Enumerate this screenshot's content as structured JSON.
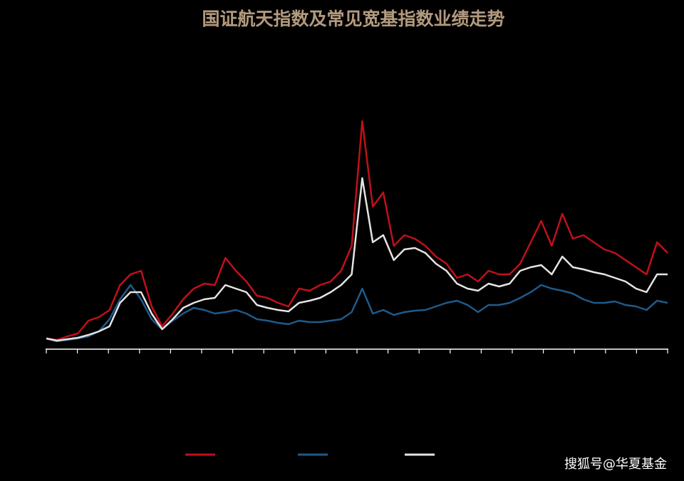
{
  "chart_data": {
    "type": "line",
    "title": "国证航天指数及常见宽基指数业绩走势",
    "watermark": "搜狐号@华夏基金",
    "ylim": [
      0.1,
      3.55
    ],
    "series": [
      {
        "color": "#c0101a",
        "values": [
          0.25,
          0.23,
          0.28,
          0.32,
          0.5,
          0.55,
          0.65,
          1.0,
          1.15,
          1.2,
          0.7,
          0.42,
          0.6,
          0.8,
          0.95,
          1.02,
          1.0,
          1.38,
          1.2,
          1.05,
          0.85,
          0.82,
          0.75,
          0.7,
          0.95,
          0.92,
          1.0,
          1.05,
          1.2,
          1.55,
          3.3,
          2.1,
          2.3,
          1.55,
          1.7,
          1.65,
          1.55,
          1.4,
          1.3,
          1.1,
          1.15,
          1.05,
          1.2,
          1.15,
          1.15,
          1.3,
          1.6,
          1.9,
          1.55,
          2.0,
          1.65,
          1.7,
          1.6,
          1.5,
          1.45,
          1.35,
          1.25,
          1.15,
          1.6,
          1.45
        ]
      },
      {
        "color": "#1f5a8a",
        "values": [
          0.25,
          0.21,
          0.23,
          0.25,
          0.28,
          0.35,
          0.52,
          0.8,
          1.0,
          0.8,
          0.52,
          0.38,
          0.5,
          0.6,
          0.68,
          0.65,
          0.6,
          0.62,
          0.65,
          0.6,
          0.52,
          0.5,
          0.47,
          0.45,
          0.5,
          0.48,
          0.48,
          0.5,
          0.52,
          0.62,
          0.95,
          0.6,
          0.65,
          0.58,
          0.62,
          0.64,
          0.65,
          0.7,
          0.75,
          0.78,
          0.72,
          0.62,
          0.72,
          0.72,
          0.75,
          0.82,
          0.9,
          1.0,
          0.95,
          0.92,
          0.88,
          0.8,
          0.75,
          0.75,
          0.77,
          0.72,
          0.7,
          0.65,
          0.78,
          0.75
        ]
      },
      {
        "color": "#e6e3e3",
        "values": [
          0.25,
          0.22,
          0.24,
          0.26,
          0.3,
          0.35,
          0.42,
          0.75,
          0.9,
          0.9,
          0.6,
          0.38,
          0.52,
          0.68,
          0.75,
          0.8,
          0.82,
          1.0,
          0.95,
          0.9,
          0.72,
          0.68,
          0.65,
          0.63,
          0.75,
          0.78,
          0.82,
          0.9,
          1.0,
          1.15,
          2.5,
          1.6,
          1.7,
          1.35,
          1.5,
          1.52,
          1.45,
          1.3,
          1.2,
          1.02,
          0.95,
          0.92,
          1.02,
          0.98,
          1.02,
          1.2,
          1.25,
          1.28,
          1.15,
          1.4,
          1.25,
          1.22,
          1.18,
          1.15,
          1.1,
          1.05,
          0.95,
          0.9,
          1.15,
          1.15
        ]
      }
    ]
  }
}
